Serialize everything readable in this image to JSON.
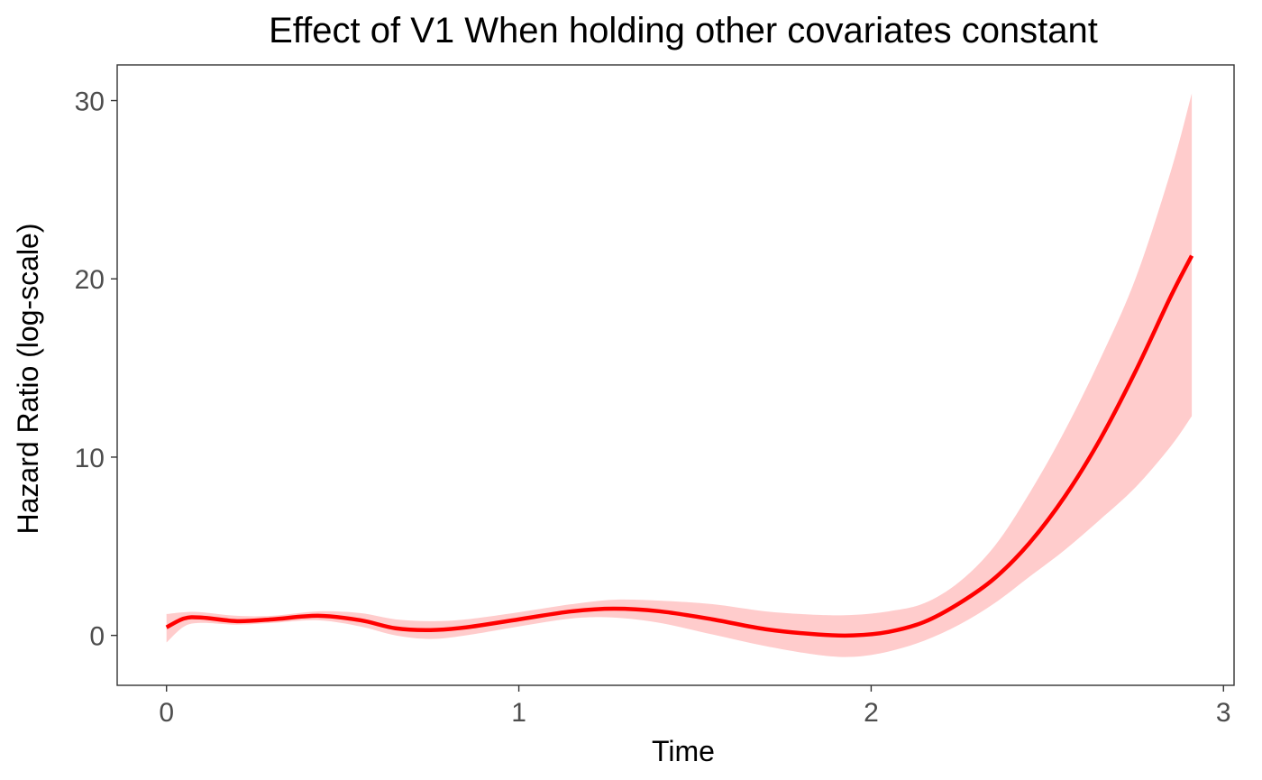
{
  "chart_data": {
    "type": "line",
    "title": "Effect of V1 When holding other covariates constant",
    "xlabel": "Time",
    "ylabel": "Hazard Ratio (log-scale)",
    "xlim": [
      -0.14,
      3.03
    ],
    "ylim": [
      -2.8,
      32
    ],
    "x_ticks": [
      0,
      1,
      2,
      3
    ],
    "x_tick_labels": [
      "0",
      "1",
      "2",
      "3"
    ],
    "y_ticks": [
      0,
      10,
      20,
      30
    ],
    "y_tick_labels": [
      "0",
      "10",
      "20",
      "30"
    ],
    "grid": false,
    "legend": "none",
    "series": [
      {
        "color": "#ff0000",
        "band_color": "#ffcccc",
        "x": [
          0.0,
          0.05,
          0.1,
          0.2,
          0.3,
          0.43,
          0.55,
          0.65,
          0.75,
          0.85,
          1.0,
          1.15,
          1.27,
          1.4,
          1.55,
          1.7,
          1.85,
          1.95,
          2.05,
          2.15,
          2.25,
          2.35,
          2.45,
          2.55,
          2.65,
          2.75,
          2.85,
          2.91
        ],
        "y": [
          0.45,
          0.95,
          1.0,
          0.8,
          0.9,
          1.1,
          0.85,
          0.4,
          0.3,
          0.45,
          0.9,
          1.35,
          1.5,
          1.35,
          0.9,
          0.35,
          0.05,
          0.0,
          0.2,
          0.75,
          1.8,
          3.2,
          5.2,
          7.8,
          11.0,
          14.8,
          19.0,
          21.3
        ],
        "lower": [
          -0.4,
          0.5,
          0.7,
          0.6,
          0.7,
          0.85,
          0.5,
          0.0,
          -0.2,
          0.0,
          0.5,
          0.95,
          1.0,
          0.7,
          0.05,
          -0.6,
          -1.1,
          -1.2,
          -0.9,
          -0.3,
          0.6,
          1.8,
          3.3,
          4.8,
          6.5,
          8.3,
          10.6,
          12.3
        ],
        "upper": [
          1.2,
          1.3,
          1.3,
          1.1,
          1.1,
          1.35,
          1.25,
          0.9,
          0.8,
          0.9,
          1.3,
          1.75,
          2.0,
          1.95,
          1.75,
          1.35,
          1.15,
          1.15,
          1.35,
          1.8,
          3.0,
          5.0,
          8.0,
          11.5,
          15.5,
          20.0,
          26.0,
          30.4
        ]
      }
    ]
  }
}
